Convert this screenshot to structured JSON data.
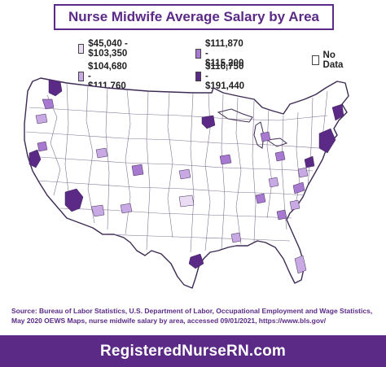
{
  "title": "Nurse Midwife Average Salary by Area",
  "legend": [
    {
      "label": "$45,040 - $103,350",
      "color": "#e9dcf3"
    },
    {
      "label": "$111,870 - $115,200",
      "color": "#a779d1"
    },
    {
      "label": "$104,680 - $111,760",
      "color": "#c8a9e4"
    },
    {
      "label": "$116,750 - $191,440",
      "color": "#5b2a86"
    },
    {
      "label": "No Data",
      "color": "#ffffff"
    }
  ],
  "source": "Source: Bureau of Labor Statistics, U.S. Department of Labor, Occupational Employment and Wage Statistics, May 2020 OEWS Maps, nurse midwife salary by area, accessed 09/01/2021, https://www.bls.gov/",
  "footer": "RegisteredNurseRN.com",
  "colors": {
    "accent": "#5b2a86",
    "border": "#3d2a52"
  }
}
